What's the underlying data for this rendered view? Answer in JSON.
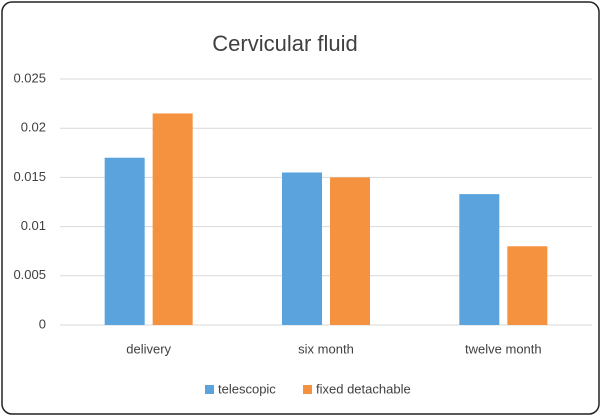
{
  "chart_data": {
    "type": "bar",
    "title": "Cervicular fluid",
    "categories": [
      "delivery",
      "six month",
      "twelve month"
    ],
    "series": [
      {
        "name": "telescopic",
        "color": "#5ba3dc",
        "values": [
          0.017,
          0.0155,
          0.0133
        ]
      },
      {
        "name": "fixed detachable",
        "color": "#f5923f",
        "values": [
          0.0215,
          0.015,
          0.008
        ]
      }
    ],
    "ylim": [
      0,
      0.025
    ],
    "yticks": [
      0,
      0.005,
      0.01,
      0.015,
      0.02,
      0.025
    ],
    "grid": true,
    "legend": "bottom"
  }
}
